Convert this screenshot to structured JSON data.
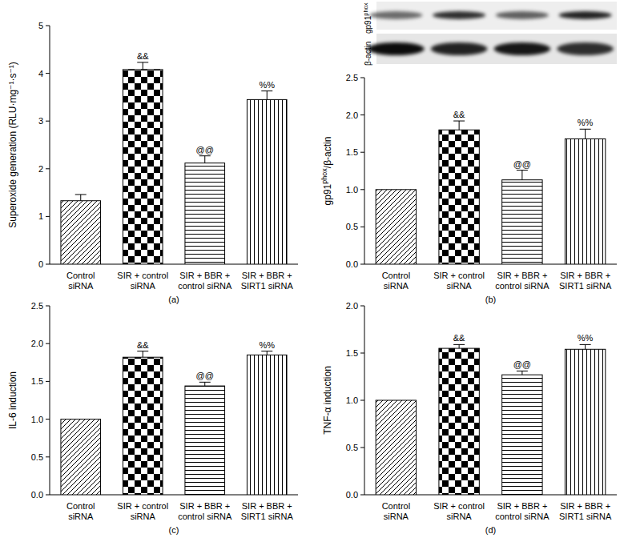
{
  "chart_data": [
    {
      "type": "bar",
      "panel_label": "(a)",
      "ylabel": "Superoxide generation (RLU·mg⁻¹·s⁻¹)",
      "categories": [
        "Control siRNA",
        "SIR + control siRNA",
        "SIR + BBR + control siRNA",
        "SIR + BBR + SIRT1 siRNA"
      ],
      "values": [
        1.33,
        4.08,
        2.12,
        3.45
      ],
      "errors": [
        0.13,
        0.15,
        0.15,
        0.18
      ],
      "annotations": [
        null,
        "&&",
        "@@",
        "%%"
      ],
      "ylim": [
        0,
        5
      ],
      "yticks": [
        0,
        1,
        2,
        3,
        4,
        5
      ],
      "color": "#000000"
    },
    {
      "type": "bar",
      "panel_label": "(b)",
      "ylabel": "gp91phox/β-actin",
      "blot": {
        "labels": [
          "β-actin",
          "gp91phox"
        ]
      },
      "categories": [
        "Control siRNA",
        "SIR + control siRNA",
        "SIR + BBR + control siRNA",
        "SIR + BBR + SIRT1 siRNA"
      ],
      "values": [
        1.0,
        1.8,
        1.13,
        1.68
      ],
      "errors": [
        0,
        0.12,
        0.13,
        0.13
      ],
      "annotations": [
        null,
        "&&",
        "@@",
        "%%"
      ],
      "ylim": [
        0,
        2.5
      ],
      "yticks": [
        {
          "value": 0,
          "label": "0.0"
        },
        0.5,
        {
          "value": 1,
          "label": "1.0"
        },
        1.5,
        {
          "value": 2,
          "label": "2.0"
        },
        2.5
      ],
      "color": "#000000"
    },
    {
      "type": "bar",
      "panel_label": "(c)",
      "ylabel": "IL-6 induction",
      "categories": [
        "Control siRNA",
        "SIR + control siRNA",
        "SIR + BBR + control siRNA",
        "SIR + BBR + SIRT1 siRNA"
      ],
      "values": [
        1.0,
        1.82,
        1.44,
        1.85
      ],
      "errors": [
        0,
        0.08,
        0.05,
        0.05
      ],
      "annotations": [
        null,
        "&&",
        "@@",
        "%%"
      ],
      "ylim": [
        0,
        2.5
      ],
      "yticks": [
        {
          "value": 0,
          "label": "0.0"
        },
        0.5,
        {
          "value": 1,
          "label": "1.0"
        },
        1.5,
        {
          "value": 2,
          "label": "2.0"
        },
        2.5
      ],
      "color": "#000000"
    },
    {
      "type": "bar",
      "panel_label": "(d)",
      "ylabel": "TNF-α induction",
      "categories": [
        "Control siRNA",
        "SIR + control siRNA",
        "SIR + BBR + control siRNA",
        "SIR + BBR + SIRT1 siRNA"
      ],
      "values": [
        1.0,
        1.55,
        1.27,
        1.54
      ],
      "errors": [
        0,
        0.04,
        0.04,
        0.05
      ],
      "annotations": [
        null,
        "&&",
        "@@",
        "%%"
      ],
      "ylim": [
        0,
        2.0
      ],
      "yticks": [
        {
          "value": 0,
          "label": "0.0"
        },
        0.5,
        {
          "value": 1,
          "label": "1.0"
        },
        1.5,
        {
          "value": 2,
          "label": "2.0"
        }
      ],
      "color": "#000000"
    }
  ]
}
